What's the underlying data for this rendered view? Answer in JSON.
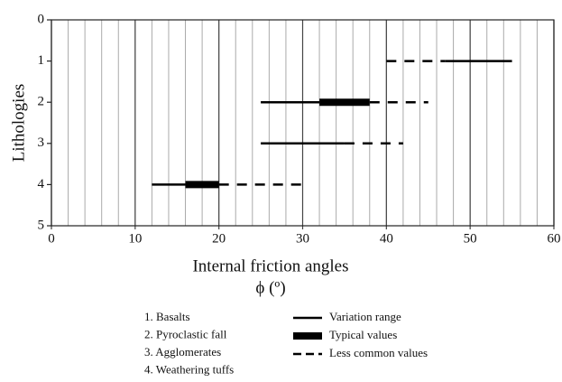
{
  "chart_data": {
    "type": "range",
    "xlabel": "Internal friction angles",
    "xunit": "ϕ (º)",
    "ylabel": "Lithologies",
    "xlim": [
      0,
      60
    ],
    "xticks": [
      0,
      10,
      20,
      30,
      40,
      50,
      60
    ],
    "xgrid": [
      2,
      4,
      6,
      8,
      10,
      12,
      14,
      16,
      18,
      20,
      22,
      24,
      26,
      28,
      30,
      32,
      34,
      36,
      38,
      40,
      42,
      44,
      46,
      48,
      50,
      52,
      54,
      56,
      58
    ],
    "ylim": [
      0,
      5
    ],
    "yticks": [
      0,
      1,
      2,
      3,
      4,
      5
    ],
    "y_inverted": true,
    "color": "#000000",
    "series": [
      {
        "name": "1. Basalts",
        "y": 1,
        "segments": [
          {
            "style": "dashed",
            "range": [
              40,
              47
            ]
          },
          {
            "style": "solid",
            "range": [
              47,
              55
            ]
          }
        ]
      },
      {
        "name": "2. Pyroclastic fall",
        "y": 2,
        "segments": [
          {
            "style": "solid",
            "range": [
              25,
              32
            ]
          },
          {
            "style": "thick",
            "range": [
              32,
              38
            ]
          },
          {
            "style": "dashed",
            "range": [
              38,
              45
            ]
          }
        ]
      },
      {
        "name": "3. Agglomerates",
        "y": 3,
        "segments": [
          {
            "style": "solid",
            "range": [
              25,
              35
            ]
          },
          {
            "style": "dashed",
            "range": [
              35,
              42
            ]
          }
        ]
      },
      {
        "name": "4. Weathering tuffs",
        "y": 4,
        "segments": [
          {
            "style": "solid",
            "range": [
              12,
              16
            ]
          },
          {
            "style": "thick",
            "range": [
              16,
              20
            ]
          },
          {
            "style": "dashed",
            "range": [
              20,
              30
            ]
          }
        ]
      }
    ],
    "styles": [
      {
        "style": "solid",
        "name": "Variation range"
      },
      {
        "style": "thick",
        "name": "Typical values"
      },
      {
        "style": "dashed",
        "name": "Less common values"
      }
    ]
  }
}
